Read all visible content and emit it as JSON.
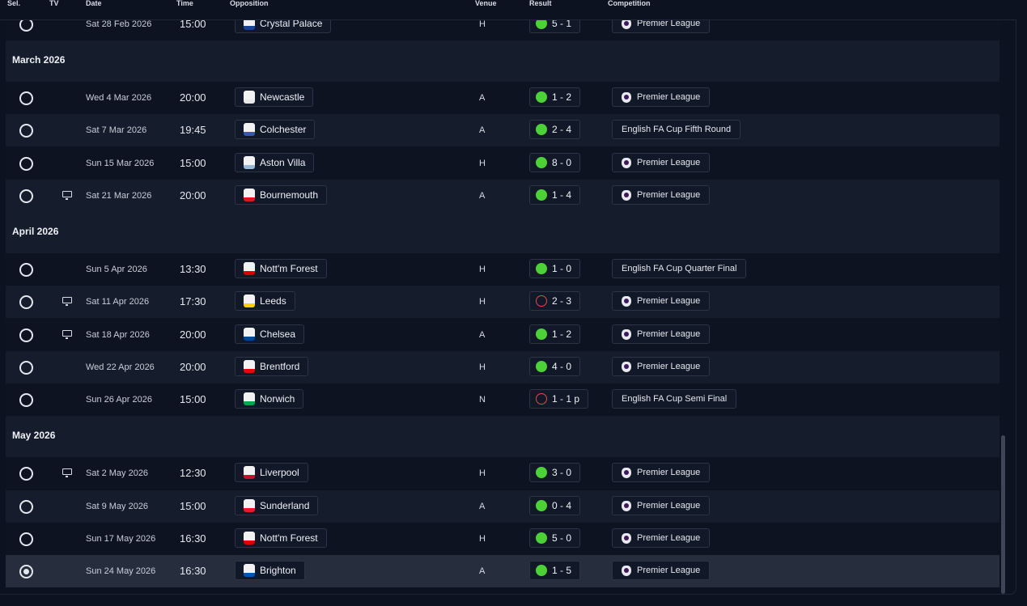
{
  "header": {
    "sel": "Sel.",
    "tv": "TV",
    "date": "Date",
    "time": "Time",
    "opposition": "Opposition",
    "venue": "Venue",
    "result": "Result",
    "competition": "Competition"
  },
  "months": {
    "march": "March 2026",
    "april": "April 2026",
    "may": "May 2026"
  },
  "rows": [
    {
      "date": "Sat 28 Feb 2026",
      "time": "15:00",
      "opposition": "Crystal Palace",
      "venue": "H",
      "result": "5 - 1",
      "outcome": "win",
      "competition": "Premier League",
      "tv": false,
      "selected": false,
      "crest_color": "#1b458f"
    },
    {
      "date": "Wed 4 Mar 2026",
      "time": "20:00",
      "opposition": "Newcastle",
      "venue": "A",
      "result": "1 - 2",
      "outcome": "win",
      "competition": "Premier League",
      "tv": false,
      "selected": false,
      "crest_color": "#e8e8e8"
    },
    {
      "date": "Sat 7 Mar 2026",
      "time": "19:45",
      "opposition": "Colchester",
      "venue": "A",
      "result": "2 - 4",
      "outcome": "win",
      "competition": "English FA Cup Fifth Round",
      "tv": false,
      "selected": false,
      "crest_color": "#2a5fb0"
    },
    {
      "date": "Sun 15 Mar 2026",
      "time": "15:00",
      "opposition": "Aston Villa",
      "venue": "H",
      "result": "8 - 0",
      "outcome": "win",
      "competition": "Premier League",
      "tv": false,
      "selected": false,
      "crest_color": "#9ab8d8"
    },
    {
      "date": "Sat 21 Mar 2026",
      "time": "20:00",
      "opposition": "Bournemouth",
      "venue": "A",
      "result": "1 - 4",
      "outcome": "win",
      "competition": "Premier League",
      "tv": true,
      "selected": false,
      "crest_color": "#d71920"
    },
    {
      "date": "Sun 5 Apr 2026",
      "time": "13:30",
      "opposition": "Nott'm Forest",
      "venue": "H",
      "result": "1 - 0",
      "outcome": "win",
      "competition": "English FA Cup Quarter Final",
      "tv": false,
      "selected": false,
      "crest_color": "#dd0000"
    },
    {
      "date": "Sat 11 Apr 2026",
      "time": "17:30",
      "opposition": "Leeds",
      "venue": "H",
      "result": "2 - 3",
      "outcome": "loss",
      "competition": "Premier League",
      "tv": true,
      "selected": false,
      "crest_color": "#ffcd00"
    },
    {
      "date": "Sat 18 Apr 2026",
      "time": "20:00",
      "opposition": "Chelsea",
      "venue": "A",
      "result": "1 - 2",
      "outcome": "win",
      "competition": "Premier League",
      "tv": true,
      "selected": false,
      "crest_color": "#034694"
    },
    {
      "date": "Wed 22 Apr 2026",
      "time": "20:00",
      "opposition": "Brentford",
      "venue": "H",
      "result": "4 - 0",
      "outcome": "win",
      "competition": "Premier League",
      "tv": false,
      "selected": false,
      "crest_color": "#e30613"
    },
    {
      "date": "Sun 26 Apr 2026",
      "time": "15:00",
      "opposition": "Norwich",
      "venue": "N",
      "result": "1 - 1 p",
      "outcome": "loss",
      "competition": "English FA Cup Semi Final",
      "tv": false,
      "selected": false,
      "crest_color": "#00a650"
    },
    {
      "date": "Sat 2 May 2026",
      "time": "12:30",
      "opposition": "Liverpool",
      "venue": "H",
      "result": "3 - 0",
      "outcome": "win",
      "competition": "Premier League",
      "tv": true,
      "selected": false,
      "crest_color": "#c8102e"
    },
    {
      "date": "Sat 9 May 2026",
      "time": "15:00",
      "opposition": "Sunderland",
      "venue": "A",
      "result": "0 - 4",
      "outcome": "win",
      "competition": "Premier League",
      "tv": false,
      "selected": false,
      "crest_color": "#eb172b"
    },
    {
      "date": "Sun 17 May 2026",
      "time": "16:30",
      "opposition": "Nott'm Forest",
      "venue": "H",
      "result": "5 - 0",
      "outcome": "win",
      "competition": "Premier League",
      "tv": false,
      "selected": false,
      "crest_color": "#dd0000"
    },
    {
      "date": "Sun 24 May 2026",
      "time": "16:30",
      "opposition": "Brighton",
      "venue": "A",
      "result": "1 - 5",
      "outcome": "win",
      "competition": "Premier League",
      "tv": false,
      "selected": true,
      "crest_color": "#0057b8"
    }
  ]
}
